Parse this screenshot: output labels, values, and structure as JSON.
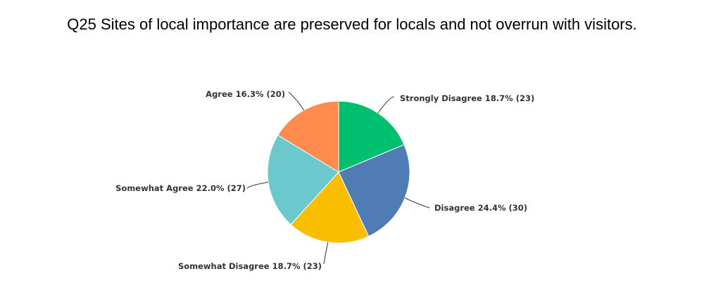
{
  "chart_data": {
    "type": "pie",
    "title": "Q25 Sites of local importance are preserved for locals and not overrun with visitors.",
    "slices": [
      {
        "label": "Strongly Disagree",
        "percent": 18.7,
        "count": 23,
        "color": "#00BF6F"
      },
      {
        "label": "Disagree",
        "percent": 24.4,
        "count": 30,
        "color": "#507CB6"
      },
      {
        "label": "Somewhat Disagree",
        "percent": 18.7,
        "count": 23,
        "color": "#F9BE00"
      },
      {
        "label": "Somewhat Agree",
        "percent": 22.0,
        "count": 27,
        "color": "#6BC8CD"
      },
      {
        "label": "Agree",
        "percent": 16.3,
        "count": 20,
        "color": "#FF8B4F"
      }
    ],
    "legend": "none",
    "label_format": "{label} {percent}% ({count})"
  }
}
